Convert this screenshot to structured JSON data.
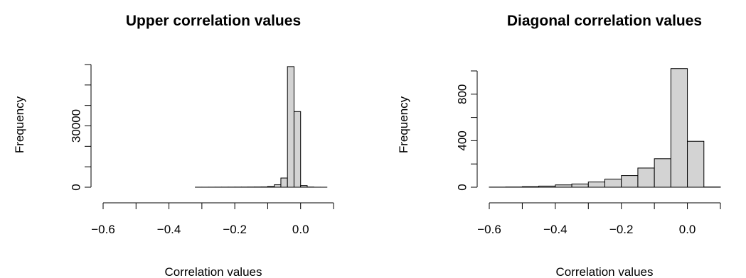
{
  "chart_data": [
    {
      "type": "bar",
      "title": "Upper correlation values",
      "xlabel": "Correlation values",
      "ylabel": "Frequency",
      "xlim": [
        -0.6,
        0.1
      ],
      "ylim": [
        0,
        60000
      ],
      "xticks": [
        -0.6,
        -0.5,
        -0.4,
        -0.3,
        -0.2,
        -0.1,
        0.0,
        0.1
      ],
      "xtick_labels": [
        "−0.6",
        "−0.4",
        "−0.2",
        "0.0"
      ],
      "xtick_label_values": [
        -0.6,
        -0.4,
        -0.2,
        0.0
      ],
      "yticks": [
        0,
        10000,
        20000,
        30000,
        40000,
        50000,
        60000
      ],
      "ytick_labels": [
        "0",
        "30000"
      ],
      "ytick_label_values": [
        0,
        30000
      ],
      "bin_width": 0.02,
      "bin_edges_start": -0.32,
      "values": [
        20,
        20,
        30,
        40,
        50,
        60,
        70,
        80,
        100,
        120,
        150,
        400,
        1200,
        4500,
        59000,
        37000,
        800,
        100,
        20,
        10
      ],
      "bar_color": "#d3d3d3",
      "grid": false
    },
    {
      "type": "bar",
      "title": "Diagonal correlation values",
      "xlabel": "Correlation values",
      "ylabel": "Frequency",
      "xlim": [
        -0.6,
        0.1
      ],
      "ylim": [
        0,
        1000
      ],
      "xticks": [
        -0.6,
        -0.5,
        -0.4,
        -0.3,
        -0.2,
        -0.1,
        0.0,
        0.1
      ],
      "xtick_labels": [
        "−0.6",
        "−0.4",
        "−0.2",
        "0.0"
      ],
      "xtick_label_values": [
        -0.6,
        -0.4,
        -0.2,
        0.0
      ],
      "yticks": [
        0,
        200,
        400,
        600,
        800,
        1000
      ],
      "ytick_labels": [
        "0",
        "400",
        "800"
      ],
      "ytick_label_values": [
        0,
        400,
        800
      ],
      "bin_width": 0.05,
      "bin_edges_start": -0.6,
      "values": [
        1,
        2,
        5,
        10,
        20,
        28,
        45,
        70,
        100,
        165,
        245,
        1020,
        395,
        2
      ],
      "bar_color": "#d3d3d3",
      "grid": false
    }
  ]
}
